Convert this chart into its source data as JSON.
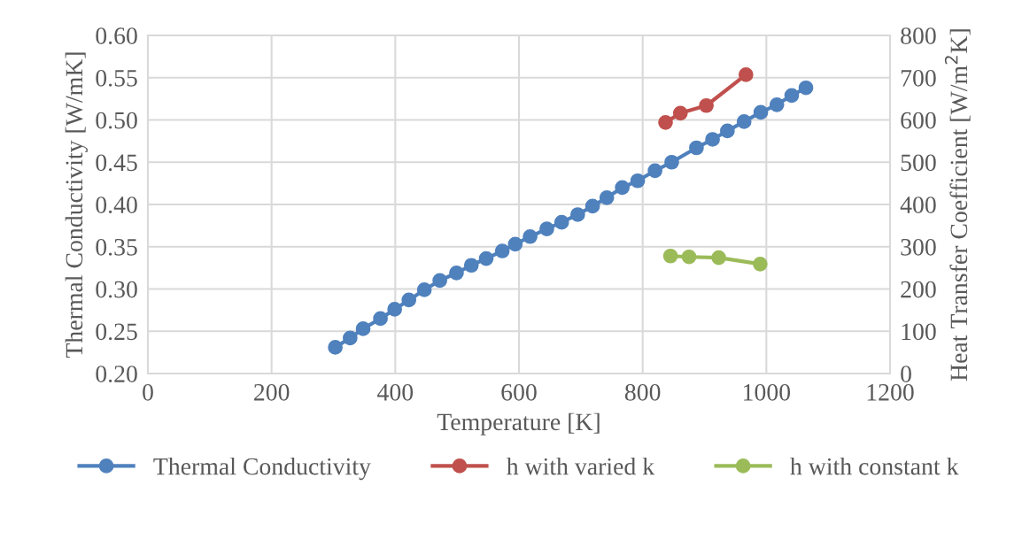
{
  "chart_data": {
    "type": "line",
    "xlabel": "Temperature [K]",
    "ylabel": "Thermal Conductivity [W/mK]",
    "y2label": "Heat Transfer Coefficient [W/m$^{2}$K]",
    "xlim": [
      0,
      1200
    ],
    "xticks": [
      0,
      200,
      400,
      600,
      800,
      1000,
      1200
    ],
    "ylim": [
      0.2,
      0.6
    ],
    "yticks": [
      {
        "value": 0.2,
        "label": "0.20"
      },
      {
        "value": 0.25,
        "label": "0.25"
      },
      {
        "value": 0.3,
        "label": "0.30"
      },
      {
        "value": 0.35,
        "label": "0.35"
      },
      {
        "value": 0.4,
        "label": "0.40"
      },
      {
        "value": 0.45,
        "label": "0.45"
      },
      {
        "value": 0.5,
        "label": "0.50"
      },
      {
        "value": 0.55,
        "label": "0.55"
      },
      {
        "value": 0.6,
        "label": "0.60"
      }
    ],
    "y2lim": [
      0,
      800
    ],
    "y2ticks": [
      0,
      100,
      200,
      300,
      400,
      500,
      600,
      700,
      800
    ],
    "grid": true,
    "legend": "bottom",
    "marker": "circle",
    "line_style": "solid",
    "series": [
      {
        "name": "Thermal Conductivity",
        "color": "#4f81bd",
        "x": [
          303,
          327,
          348,
          376,
          399,
          422,
          447,
          472,
          499,
          523,
          547,
          573,
          594,
          618,
          645,
          669,
          695,
          719,
          742,
          767,
          792,
          820,
          847,
          887,
          913,
          937,
          964,
          991,
          1017,
          1041,
          1064
        ],
        "values": [
          0.231,
          0.242,
          0.253,
          0.265,
          0.276,
          0.287,
          0.299,
          0.31,
          0.319,
          0.328,
          0.336,
          0.345,
          0.353,
          0.362,
          0.371,
          0.379,
          0.388,
          0.398,
          0.408,
          0.42,
          0.428,
          0.44,
          0.45,
          0.467,
          0.477,
          0.487,
          0.498,
          0.509,
          0.518,
          0.529,
          0.538
        ]
      },
      {
        "name": "h with varied k",
        "color": "#c0504d",
        "axis": "y2",
        "x": [
          837,
          861,
          903,
          967
        ],
        "values": [
          594,
          616,
          634,
          707
        ]
      },
      {
        "name": "h with constant k",
        "color": "#9bbb59",
        "axis": "y2",
        "x": [
          845,
          875,
          923,
          990
        ],
        "values": [
          278,
          276,
          274,
          259
        ]
      }
    ]
  }
}
